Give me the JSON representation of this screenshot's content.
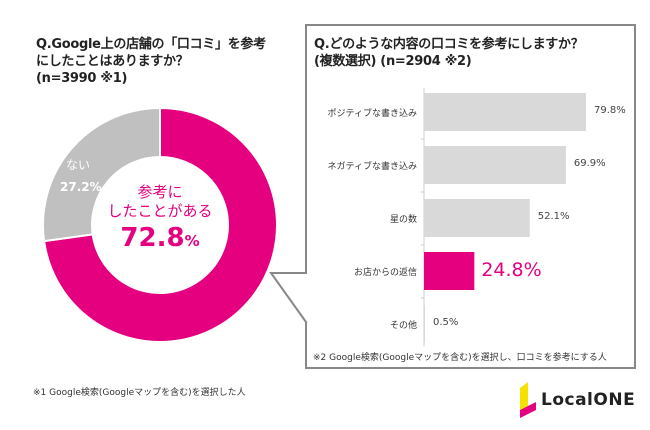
{
  "chart_data": [
    {
      "type": "pie",
      "title": "Q.Google上の店舗の「口コミ」を参考にしたことはありますか？",
      "subtitle": "(n=3990 ※1)",
      "categories": [
        "参考にしたことがある",
        "ない"
      ],
      "values": [
        72.8,
        27.2
      ],
      "labels": {
        "yes_line1": "参考に",
        "yes_line2": "したことがある",
        "yes_value": "72.8",
        "yes_unit": "%",
        "no": "ない",
        "no_value": "27.2%"
      },
      "colors": [
        "#e4007f",
        "#c0c0c0"
      ]
    },
    {
      "type": "bar",
      "orientation": "horizontal",
      "title": "Q.どのような内容の口コミを参考にしますか？",
      "subtitle": "(複数選択) (n=2904 ※2)",
      "categories": [
        "ポジティブな書き込み",
        "ネガティブな書き込み",
        "星の数",
        "お店からの返信",
        "その他"
      ],
      "values": [
        79.8,
        69.9,
        52.1,
        24.8,
        0.5
      ],
      "value_labels": [
        "79.8%",
        "69.9%",
        "52.1%",
        "24.8%",
        "0.5%"
      ],
      "highlight_index": 3,
      "colors": {
        "default": "#d9d9d9",
        "highlight": "#e4007f"
      }
    }
  ],
  "notes": {
    "note1": "※1 Google検索(Googleマップを含む)を選択した人",
    "note2": "※2 Google検索(Googleマップを含む)を選択し、口コミを参考にする人"
  },
  "logo": {
    "text": "LocalONE",
    "colors": [
      "#f5e100",
      "#e4007f"
    ]
  }
}
